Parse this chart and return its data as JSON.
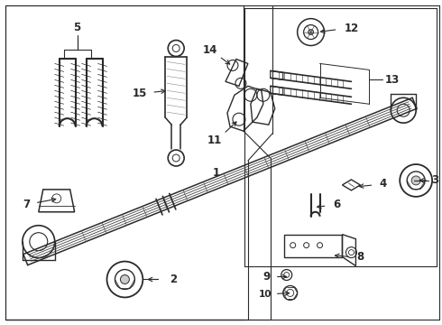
{
  "bg_color": "#ffffff",
  "line_color": "#2a2a2a",
  "fig_width": 4.9,
  "fig_height": 3.6,
  "dpi": 100,
  "font_size": 8.5,
  "bold": true
}
